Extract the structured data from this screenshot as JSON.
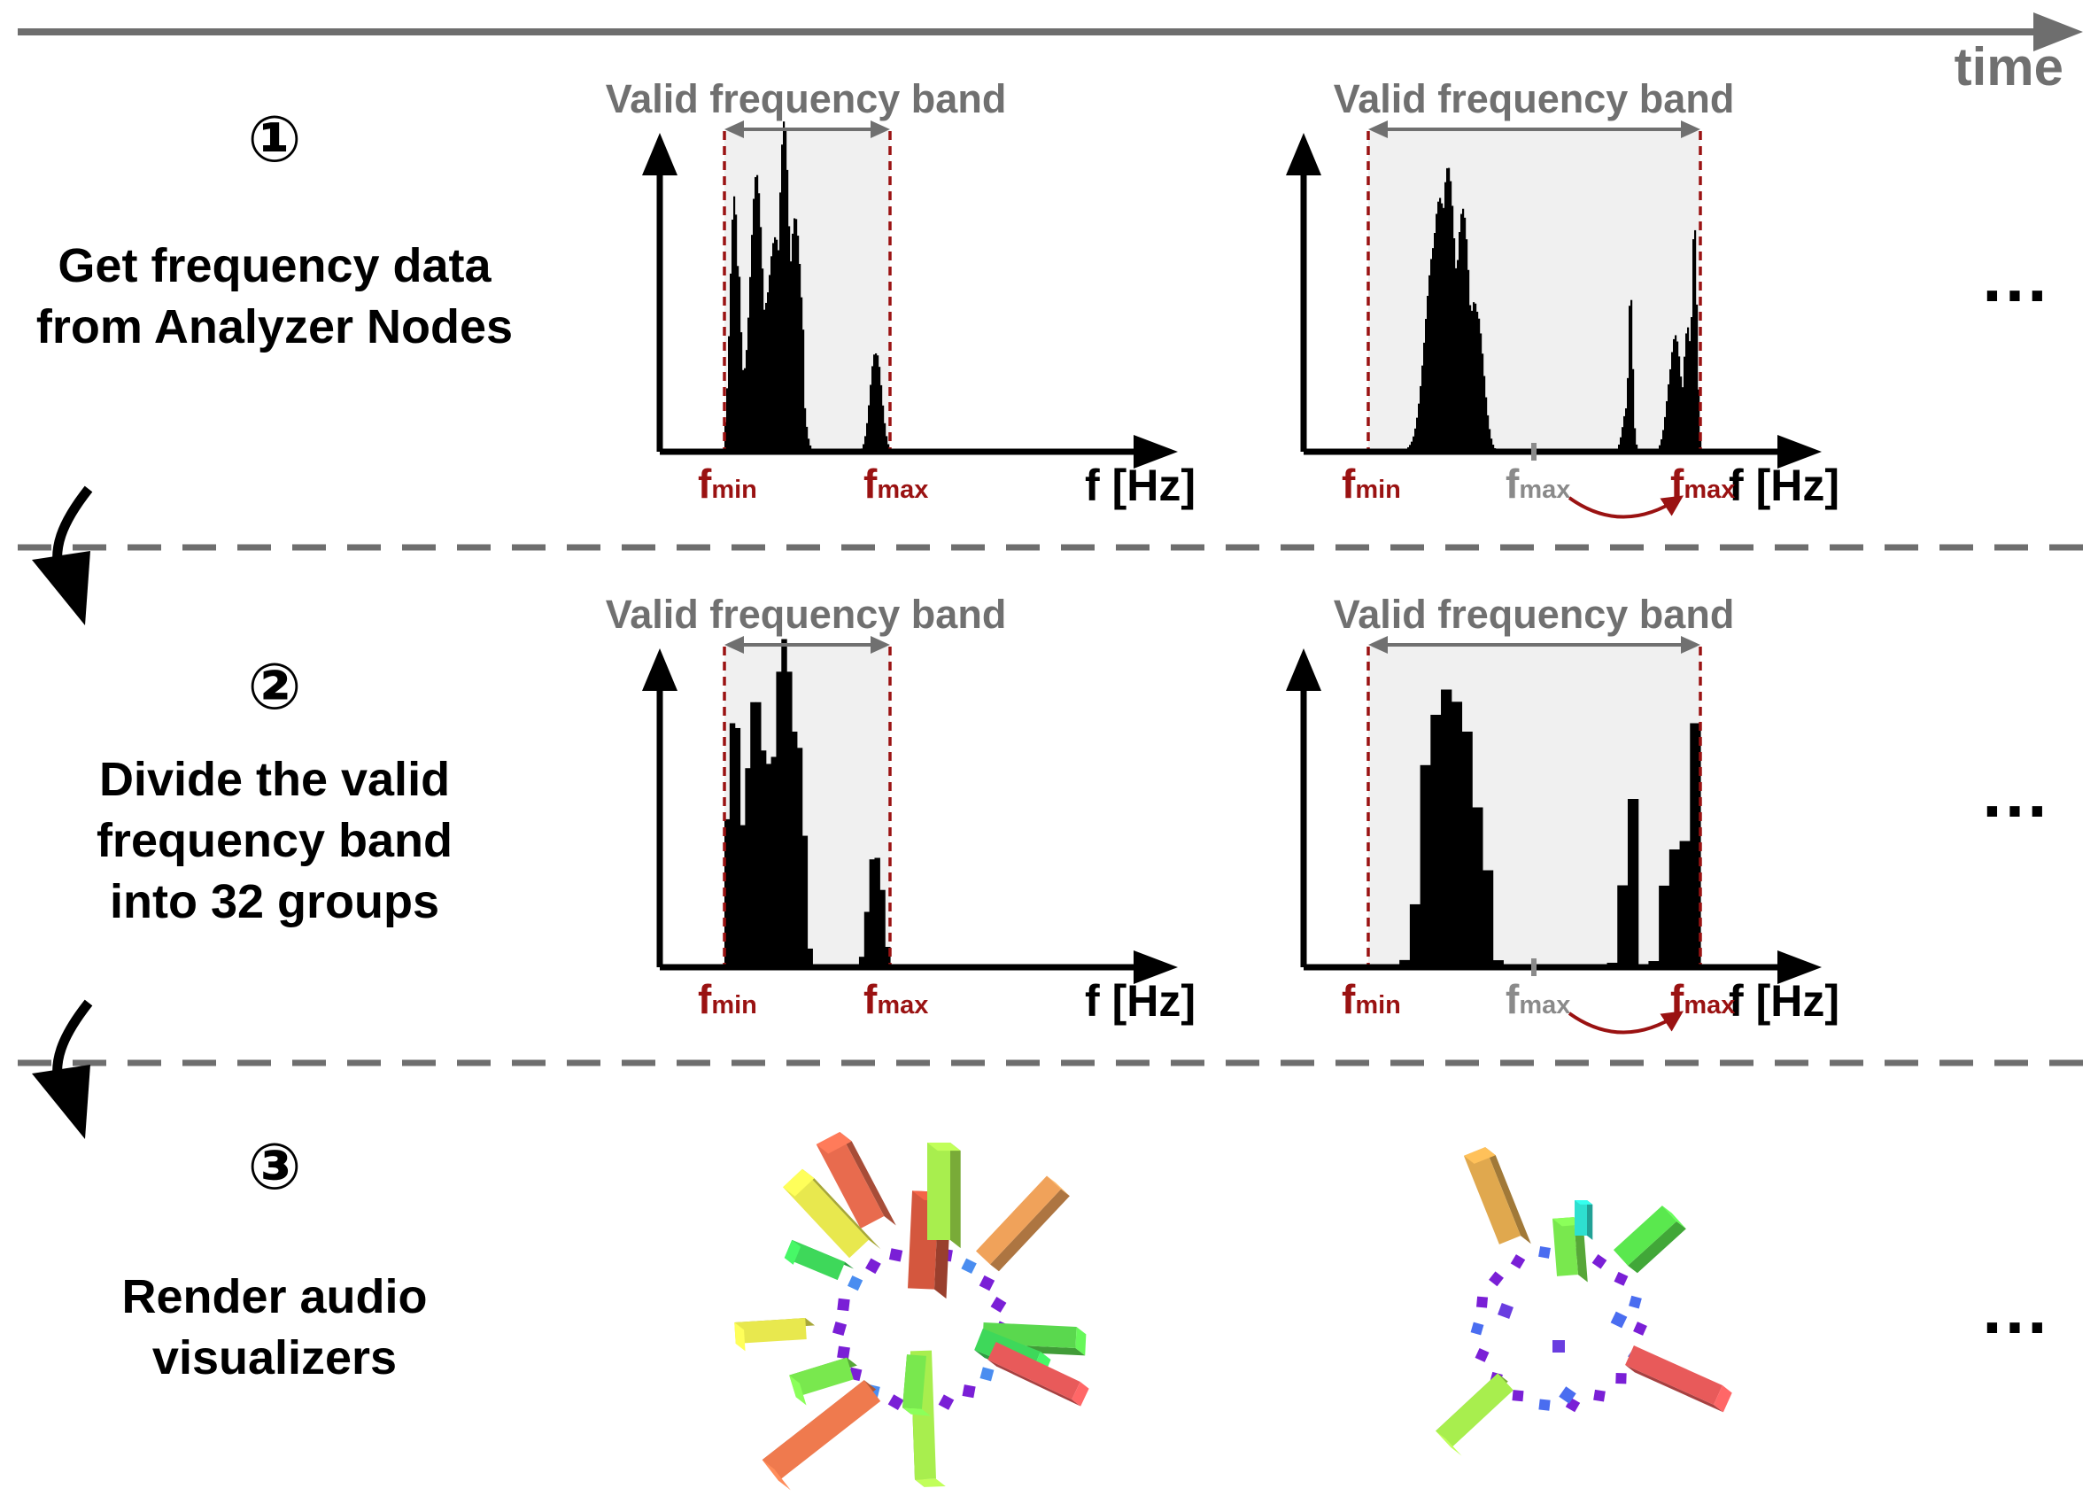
{
  "timeline": {
    "label": "time"
  },
  "steps": [
    {
      "number": "①",
      "lines": [
        "Get frequency data",
        "from Analyzer Nodes"
      ]
    },
    {
      "number": "②",
      "lines": [
        "Divide the valid",
        "frequency band",
        "into 32 groups"
      ]
    },
    {
      "number": "③",
      "lines": [
        "Render audio",
        "visualizers"
      ]
    }
  ],
  "band_title": "Valid frequency band",
  "axis_label": "f [Hz]",
  "fmin": {
    "main": "f",
    "sub": "min"
  },
  "fmax": {
    "main": "f",
    "sub": "max"
  },
  "ellipsis": "…",
  "colors": {
    "marker_red": "#9a1212",
    "band_fill": "#f0f0f0",
    "arrow_grey": "#6e6e6e",
    "divider": "#6e6e6e"
  }
}
